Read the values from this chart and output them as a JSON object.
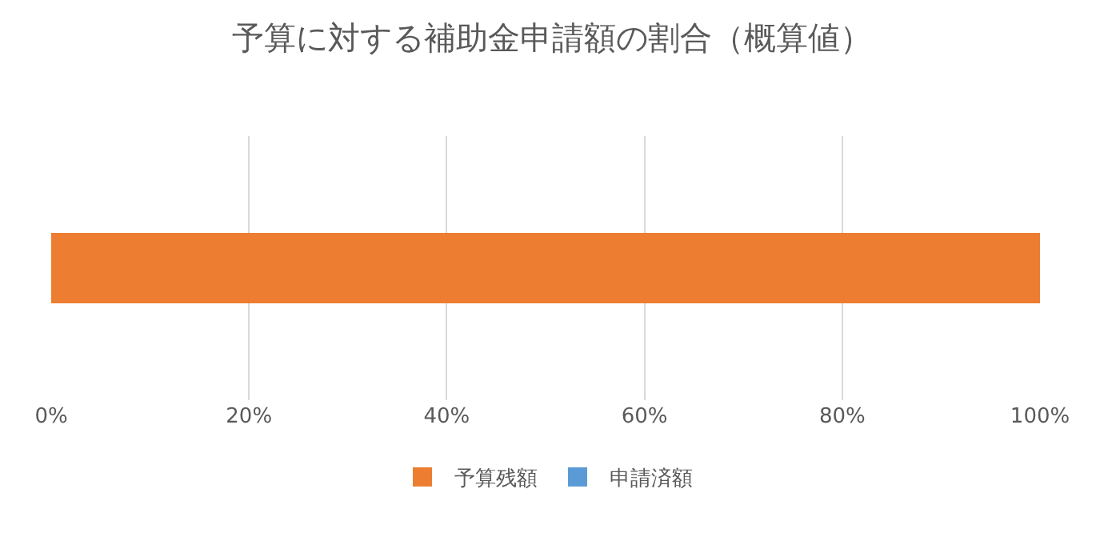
{
  "chart_data": {
    "type": "bar",
    "title": "予算に対する補助金申請額の割合（概算値）",
    "orientation": "horizontal",
    "stacked": true,
    "categories": [
      null
    ],
    "series": [
      {
        "name": "申請済額",
        "color": "#5b9bd5",
        "values": [
          0
        ]
      },
      {
        "name": "予算残額",
        "color": "#ed7d31",
        "values": [
          100
        ]
      }
    ],
    "xlim": [
      0,
      100
    ],
    "xticks": [
      {
        "value": 0,
        "label": "0%"
      },
      {
        "value": 20,
        "label": "20%"
      },
      {
        "value": 40,
        "label": "40%"
      },
      {
        "value": 60,
        "label": "60%"
      },
      {
        "value": 80,
        "label": "80%"
      },
      {
        "value": 100,
        "label": "100%"
      }
    ],
    "grid": "x",
    "legend": "bottom"
  }
}
